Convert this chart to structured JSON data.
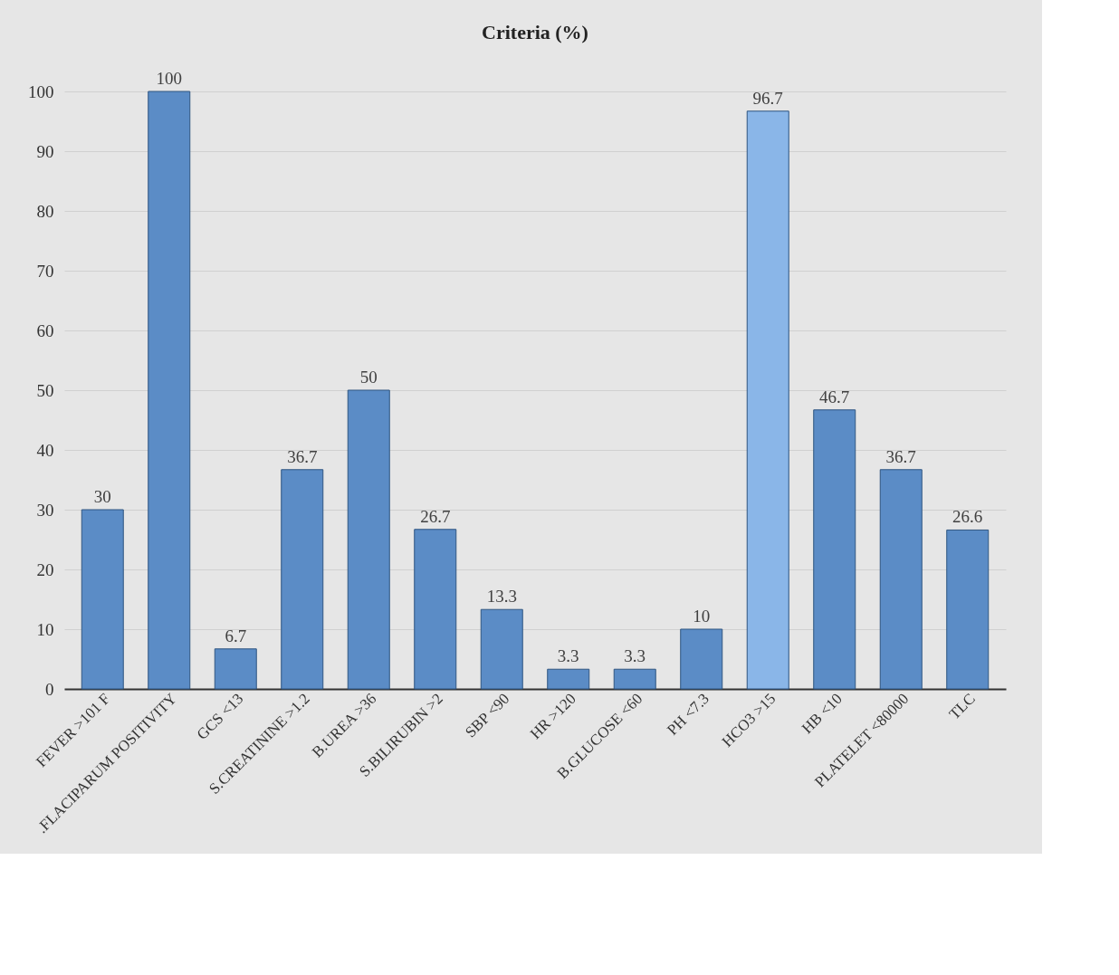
{
  "chart_data": {
    "type": "bar",
    "title": "Criteria (%)",
    "categories": [
      "FEVER >101 F",
      ".FLACIPARUM POSITIVITY",
      "GCS <13",
      "S.CREATININE >1.2",
      "B.UREA >36",
      "S.BILIRUBIN >2",
      "SBP <90",
      "HR >120",
      "B.GLUCOSE <60",
      "PH <7.3",
      "HCO3 >15",
      "HB <10",
      "PLATELET <80000",
      "TLC"
    ],
    "values": [
      30,
      100,
      6.7,
      36.7,
      50,
      26.7,
      13.3,
      3.3,
      3.3,
      10,
      96.7,
      46.7,
      36.7,
      26.6
    ],
    "colors": [
      "#5b8cc6",
      "#5b8cc6",
      "#5b8cc6",
      "#5b8cc6",
      "#5b8cc6",
      "#5b8cc6",
      "#5b8cc6",
      "#5b8cc6",
      "#5b8cc6",
      "#5b8cc6",
      "#8ab6e8",
      "#5b8cc6",
      "#5b8cc6",
      "#5b8cc6"
    ],
    "ylim": [
      0,
      100
    ],
    "yticks": [
      0,
      10,
      20,
      30,
      40,
      50,
      60,
      70,
      80,
      90,
      100
    ],
    "grid": "y",
    "data_labels": true
  }
}
